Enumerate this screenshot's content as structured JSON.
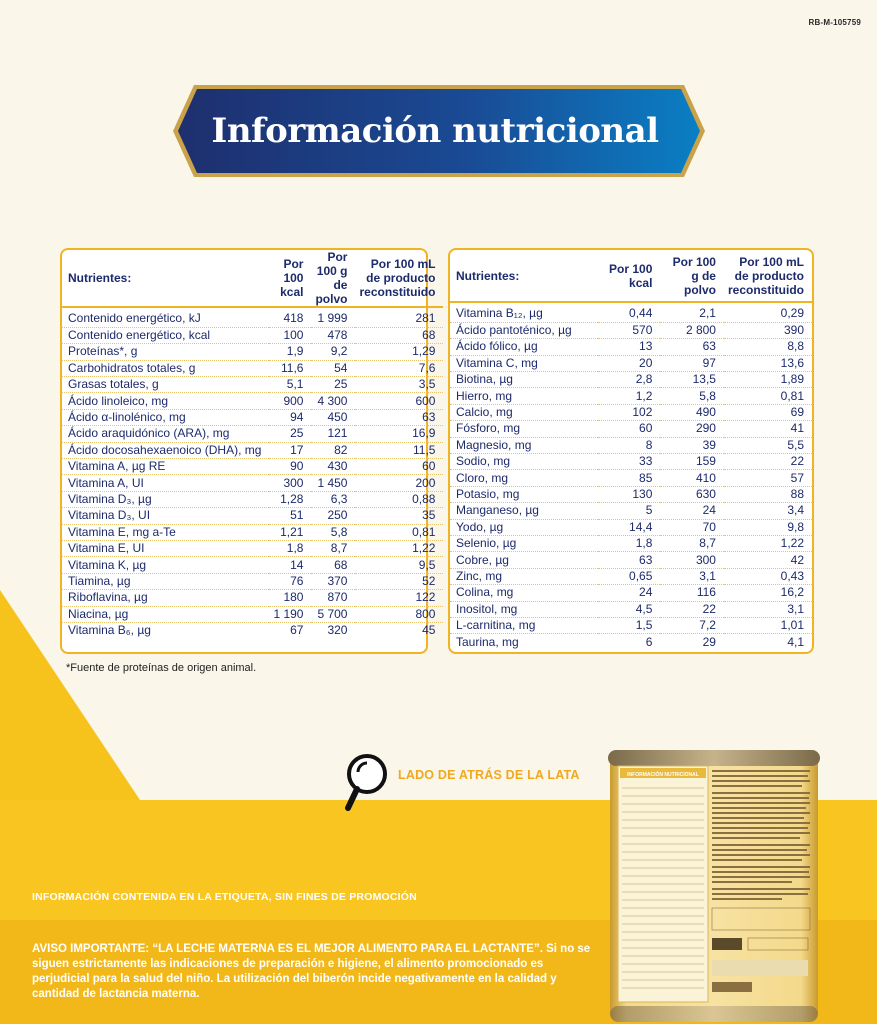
{
  "ref_code": "RB-M-105759",
  "title": "Información nutricional",
  "colors": {
    "background": "#fbf6ea",
    "banner_start": "#1e2f6e",
    "banner_end": "#0a7fc4",
    "banner_border": "#c9a24a",
    "table_border": "#f0b324",
    "text": "#1d2a6b",
    "yellow": "#f6c21c",
    "accent_orange": "#f0a81e"
  },
  "table_left": {
    "headers": [
      "Nutrientes:",
      "Por 100 kcal",
      "Por 100 g de polvo",
      "Por 100 mL de producto reconstituido"
    ],
    "rows": [
      [
        "Contenido energético, kJ",
        "418",
        "1 999",
        "281"
      ],
      [
        "Contenido energético, kcal",
        "100",
        "478",
        "68"
      ],
      [
        "Proteínas*, g",
        "1,9",
        "9,2",
        "1,29"
      ],
      [
        "Carbohidratos totales, g",
        "11,6",
        "54",
        "7,6"
      ],
      [
        "Grasas totales, g",
        "5,1",
        "25",
        "3,5"
      ],
      [
        "Ácido linoleico, mg",
        "900",
        "4 300",
        "600"
      ],
      [
        "Ácido α-linolénico, mg",
        "94",
        "450",
        "63"
      ],
      [
        "Ácido araquidónico (ARA), mg",
        "25",
        "121",
        "16,9"
      ],
      [
        "Ácido docosahexaenoico (DHA), mg",
        "17",
        "82",
        "11,5"
      ],
      [
        "Vitamina A, µg RE",
        "90",
        "430",
        "60"
      ],
      [
        "Vitamina A, UI",
        "300",
        "1 450",
        "200"
      ],
      [
        "Vitamina D₃, µg",
        "1,28",
        "6,3",
        "0,88"
      ],
      [
        "Vitamina D₃, UI",
        "51",
        "250",
        "35"
      ],
      [
        "Vitamina E, mg a-Te",
        "1,21",
        "5,8",
        "0,81"
      ],
      [
        "Vitamina E, UI",
        "1,8",
        "8,7",
        "1,22"
      ],
      [
        "Vitamina K, µg",
        "14",
        "68",
        "9,5"
      ],
      [
        "Tiamina, µg",
        "76",
        "370",
        "52"
      ],
      [
        "Riboflavina, µg",
        "180",
        "870",
        "122"
      ],
      [
        "Niacina, µg",
        "1 190",
        "5 700",
        "800"
      ],
      [
        "Vitamina B₆, µg",
        "67",
        "320",
        "45"
      ]
    ]
  },
  "table_right": {
    "headers": [
      "Nutrientes:",
      "Por 100 kcal",
      "Por 100 g de polvo",
      "Por 100 mL de producto reconstituido"
    ],
    "rows": [
      [
        "Vitamina B₁₂, µg",
        "0,44",
        "2,1",
        "0,29"
      ],
      [
        "Ácido pantoténico, µg",
        "570",
        "2 800",
        "390"
      ],
      [
        "Ácido fólico, µg",
        "13",
        "63",
        "8,8"
      ],
      [
        "Vitamina C, mg",
        "20",
        "97",
        "13,6"
      ],
      [
        "Biotina, µg",
        "2,8",
        "13,5",
        "1,89"
      ],
      [
        "Hierro, mg",
        "1,2",
        "5,8",
        "0,81"
      ],
      [
        "Calcio, mg",
        "102",
        "490",
        "69"
      ],
      [
        "Fósforo, mg",
        "60",
        "290",
        "41"
      ],
      [
        "Magnesio, mg",
        "8",
        "39",
        "5,5"
      ],
      [
        "Sodio, mg",
        "33",
        "159",
        "22"
      ],
      [
        "Cloro, mg",
        "85",
        "410",
        "57"
      ],
      [
        "Potasio, mg",
        "130",
        "630",
        "88"
      ],
      [
        "Manganeso, µg",
        "5",
        "24",
        "3,4"
      ],
      [
        "Yodo, µg",
        "14,4",
        "70",
        "9,8"
      ],
      [
        "Selenio, µg",
        "1,8",
        "8,7",
        "1,22"
      ],
      [
        "Cobre, µg",
        "63",
        "300",
        "42"
      ],
      [
        "Zinc, mg",
        "0,65",
        "3,1",
        "0,43"
      ],
      [
        "Colina, mg",
        "24",
        "116",
        "16,2"
      ],
      [
        "Inositol, mg",
        "4,5",
        "22",
        "3,1"
      ],
      [
        "L-carnitina, mg",
        "1,5",
        "7,2",
        "1,01"
      ],
      [
        "Taurina, mg",
        "6",
        "29",
        "4,1"
      ]
    ]
  },
  "footnote": "*Fuente de proteínas de origen animal.",
  "back_label": "LADO DE ATRÁS DE LA LATA",
  "info_label": "INFORMACIÓN CONTENIDA EN LA ETIQUETA, SIN FINES DE PROMOCIÓN",
  "notice": "AVISO IMPORTANTE: “LA LECHE MATERNA ES EL MEJOR ALIMENTO PARA EL LACTANTE”. Si no se siguen estrictamente las indicaciones de preparación e higiene, el alimento promocionado es perjudicial para la salud del niño. La utilización del biberón incide negativamente en la calidad y cantidad de lactancia materna.",
  "can_label_title": "INFORMACIÓN NUTRICIONAL",
  "icons": [
    "magnifier-icon"
  ]
}
